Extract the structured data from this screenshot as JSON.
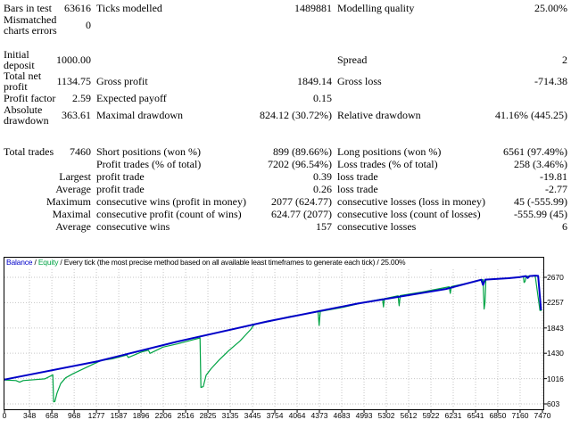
{
  "report": {
    "rows": [
      {
        "cells": [
          "Bars in test",
          "63616",
          "Ticks modelled",
          "1489881",
          "Modelling quality",
          "25.00%"
        ]
      },
      {
        "cells": [
          "Mismatched charts errors",
          "0",
          "",
          "",
          "",
          ""
        ]
      },
      {
        "spacer": true,
        "cells": [
          "",
          "",
          "",
          "",
          "",
          ""
        ]
      },
      {
        "cells": [
          "Initial deposit",
          "1000.00",
          "",
          "",
          "Spread",
          "2"
        ]
      },
      {
        "cells": [
          "Total net profit",
          "1134.75",
          "Gross profit",
          "1849.14",
          "Gross loss",
          "-714.38"
        ]
      },
      {
        "cells": [
          "Profit factor",
          "2.59",
          "Expected payoff",
          "0.15",
          "",
          ""
        ]
      },
      {
        "cells": [
          "Absolute drawdown",
          "363.61",
          "Maximal drawdown",
          "824.12 (30.72%)",
          "Relative drawdown",
          "41.16% (445.25)"
        ]
      },
      {
        "spacer": true,
        "cells": [
          "",
          "",
          "",
          "",
          "",
          ""
        ]
      },
      {
        "cells": [
          "Total trades",
          "7460",
          "Short positions (won %)",
          "899 (89.66%)",
          "Long positions (won %)",
          "6561 (97.49%)"
        ]
      },
      {
        "cells": [
          "",
          "",
          "Profit trades (% of total)",
          "7202 (96.54%)",
          "Loss trades (% of total)",
          "258 (3.46%)"
        ]
      },
      {
        "cells": [
          "",
          "Largest",
          "profit trade",
          "0.39",
          "loss trade",
          "-19.81"
        ]
      },
      {
        "cells": [
          "",
          "Average",
          "profit trade",
          "0.26",
          "loss trade",
          "-2.77"
        ]
      },
      {
        "cells": [
          "",
          "Maximum",
          "consecutive wins (profit in money)",
          "2077 (624.77)",
          "consecutive losses (loss in money)",
          "45 (-555.99)"
        ]
      },
      {
        "cells": [
          "",
          "Maximal",
          "consecutive profit (count of wins)",
          "624.77 (2077)",
          "consecutive loss (count of losses)",
          "-555.99 (45)"
        ]
      },
      {
        "cells": [
          "",
          "Average",
          "consecutive wins",
          "157",
          "consecutive losses",
          "6"
        ]
      }
    ]
  },
  "chart": {
    "legend": {
      "balance": "Balance",
      "equity": "Equity",
      "separator": " / ",
      "method": "Every tick (the most precise method based on all available least timeframes to generate each tick)",
      "quality": "25.00%"
    },
    "colors": {
      "balance": "#0000C8",
      "equity": "#00A344",
      "grid": "#C6C6C6",
      "border": "#000000"
    }
  },
  "chart_data": {
    "type": "line",
    "title": "Balance / Equity",
    "xlabel": "",
    "ylabel": "",
    "grid": true,
    "legend_position": "top-left",
    "xlim": [
      0,
      7500
    ],
    "ylim": [
      603,
      2670
    ],
    "x_ticks": [
      0,
      348,
      658,
      968,
      1277,
      1587,
      1896,
      2206,
      2516,
      2825,
      3135,
      3445,
      3754,
      4064,
      4373,
      4683,
      4993,
      5302,
      5612,
      5922,
      6231,
      6541,
      6850,
      7160,
      7470
    ],
    "y_ticks": [
      2670,
      2257,
      1843,
      1430,
      1016,
      603
    ],
    "series": [
      {
        "name": "Balance",
        "color": "#0000C8",
        "points": [
          [
            0,
            1000
          ],
          [
            1300,
            1300
          ],
          [
            2400,
            1620
          ],
          [
            3650,
            1950
          ],
          [
            4900,
            2240
          ],
          [
            6130,
            2480
          ],
          [
            6620,
            2630
          ],
          [
            6645,
            2545
          ],
          [
            6675,
            2632
          ],
          [
            7000,
            2655
          ],
          [
            7160,
            2675
          ],
          [
            7240,
            2690
          ],
          [
            7265,
            2658
          ],
          [
            7290,
            2690
          ],
          [
            7370,
            2697
          ],
          [
            7410,
            2693
          ],
          [
            7450,
            2135
          ]
        ]
      },
      {
        "name": "Equity",
        "color": "#00A344",
        "points": [
          [
            0,
            995
          ],
          [
            160,
            985
          ],
          [
            210,
            958
          ],
          [
            260,
            985
          ],
          [
            560,
            1012
          ],
          [
            650,
            1065
          ],
          [
            672,
            1078
          ],
          [
            682,
            637
          ],
          [
            700,
            642
          ],
          [
            730,
            780
          ],
          [
            780,
            935
          ],
          [
            850,
            1030
          ],
          [
            950,
            1095
          ],
          [
            1100,
            1180
          ],
          [
            1340,
            1312
          ],
          [
            1500,
            1340
          ],
          [
            1700,
            1400
          ],
          [
            1720,
            1362
          ],
          [
            1900,
            1450
          ],
          [
            2000,
            1480
          ],
          [
            2020,
            1428
          ],
          [
            2200,
            1530
          ],
          [
            2400,
            1582
          ],
          [
            2600,
            1645
          ],
          [
            2715,
            1680
          ],
          [
            2728,
            872
          ],
          [
            2760,
            885
          ],
          [
            2800,
            1070
          ],
          [
            2870,
            1180
          ],
          [
            2980,
            1320
          ],
          [
            3120,
            1480
          ],
          [
            3270,
            1630
          ],
          [
            3420,
            1820
          ],
          [
            3470,
            1905
          ],
          [
            3700,
            1955
          ],
          [
            3960,
            2030
          ],
          [
            4355,
            2108
          ],
          [
            4369,
            1886
          ],
          [
            4385,
            2112
          ],
          [
            4700,
            2180
          ],
          [
            5000,
            2262
          ],
          [
            5250,
            2318
          ],
          [
            5262,
            2185
          ],
          [
            5275,
            2322
          ],
          [
            5465,
            2368
          ],
          [
            5480,
            2205
          ],
          [
            5495,
            2372
          ],
          [
            5800,
            2430
          ],
          [
            6175,
            2515
          ],
          [
            6190,
            2408
          ],
          [
            6205,
            2520
          ],
          [
            6500,
            2590
          ],
          [
            6645,
            2632
          ],
          [
            6660,
            2152
          ],
          [
            6672,
            2260
          ],
          [
            6685,
            2635
          ],
          [
            7000,
            2652
          ],
          [
            7160,
            2672
          ],
          [
            7205,
            2686
          ],
          [
            7215,
            2585
          ],
          [
            7228,
            2602
          ],
          [
            7245,
            2688
          ],
          [
            7300,
            2691
          ],
          [
            7370,
            2694
          ],
          [
            7435,
            2128
          ],
          [
            7460,
            2132
          ]
        ]
      }
    ]
  }
}
